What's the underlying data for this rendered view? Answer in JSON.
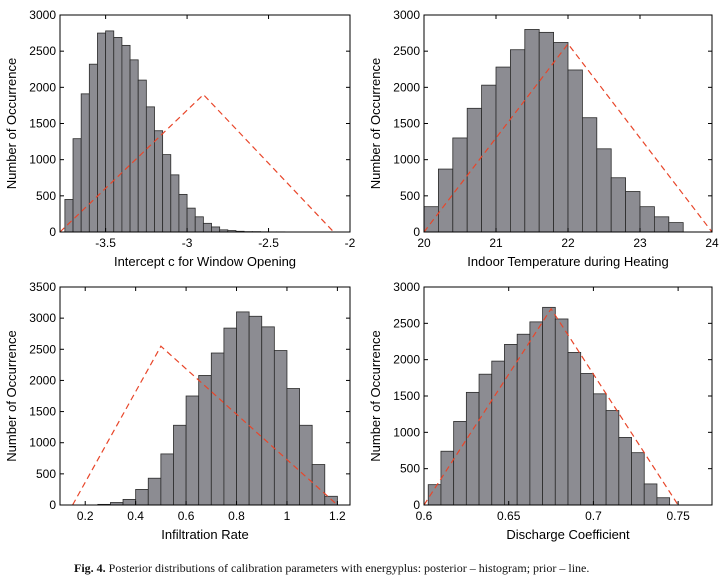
{
  "figure": {
    "caption_label": "Fig. 4.",
    "caption_text": "Posterior distributions of calibration parameters with energyplus: posterior – histogram; prior – line."
  },
  "colors": {
    "bar_fill": "#8c8c92",
    "bar_stroke": "#2a2a2a",
    "prior_line": "#e8462a",
    "axis": "#000000"
  },
  "chart_data": [
    {
      "type": "bar",
      "xlabel": "Intercept c for Window Opening",
      "ylabel": "Number of Occurrence",
      "xlim": [
        -3.78,
        -2.0
      ],
      "ylim": [
        0,
        3000
      ],
      "xticks": [
        -3.5,
        -3,
        -2.5,
        -2
      ],
      "xtick_labels": [
        "-3.5",
        "-3",
        "-2.5",
        "-2"
      ],
      "yticks": [
        0,
        500,
        1000,
        1500,
        2000,
        2500,
        3000
      ],
      "bins": {
        "edges": [
          -3.75,
          -3.7,
          -3.65,
          -3.6,
          -3.55,
          -3.5,
          -3.45,
          -3.4,
          -3.35,
          -3.3,
          -3.25,
          -3.2,
          -3.15,
          -3.1,
          -3.05,
          -3.0,
          -2.95,
          -2.9,
          -2.85,
          -2.8,
          -2.75,
          -2.7,
          -2.65,
          -2.6,
          -2.55,
          -2.5,
          -2.45,
          -2.4,
          -2.35,
          -2.3,
          -2.25,
          -2.2
        ],
        "counts": [
          450,
          1290,
          1910,
          2320,
          2750,
          2780,
          2690,
          2580,
          2380,
          2100,
          1730,
          1400,
          1070,
          790,
          520,
          330,
          210,
          120,
          70,
          30,
          20,
          10,
          5,
          5,
          3,
          2,
          2,
          1,
          1,
          1,
          1
        ]
      },
      "prior_line": {
        "x": [
          -3.78,
          -2.9,
          -2.1
        ],
        "y": [
          0,
          1900,
          0
        ]
      }
    },
    {
      "type": "bar",
      "xlabel": "Indoor Temperature during Heating",
      "ylabel": "Number of Occurrence",
      "xlim": [
        20,
        24
      ],
      "ylim": [
        0,
        3000
      ],
      "xticks": [
        20,
        21,
        22,
        23,
        24
      ],
      "xtick_labels": [
        "20",
        "21",
        "22",
        "23",
        "24"
      ],
      "yticks": [
        0,
        500,
        1000,
        1500,
        2000,
        2500,
        3000
      ],
      "bins": {
        "edges": [
          20.0,
          20.2,
          20.4,
          20.6,
          20.8,
          21.0,
          21.2,
          21.4,
          21.6,
          21.8,
          22.0,
          22.2,
          22.4,
          22.6,
          22.8,
          23.0,
          23.2,
          23.4,
          23.6
        ],
        "counts": [
          350,
          870,
          1300,
          1710,
          2030,
          2280,
          2520,
          2800,
          2760,
          2620,
          2240,
          1580,
          1150,
          750,
          560,
          350,
          210,
          130
        ]
      },
      "prior_line": {
        "x": [
          20.0,
          22.0,
          24.0
        ],
        "y": [
          0,
          2600,
          0
        ]
      }
    },
    {
      "type": "bar",
      "xlabel": "Infiltration Rate",
      "ylabel": "Number of Occurrence",
      "xlim": [
        0.1,
        1.25
      ],
      "ylim": [
        0,
        3500
      ],
      "xticks": [
        0.2,
        0.4,
        0.6,
        0.8,
        1,
        1.2
      ],
      "xtick_labels": [
        "0.2",
        "0.4",
        "0.6",
        "0.8",
        "1",
        "1.2"
      ],
      "yticks": [
        0,
        500,
        1000,
        1500,
        2000,
        2500,
        3000,
        3500
      ],
      "bins": {
        "edges": [
          0.25,
          0.3,
          0.35,
          0.4,
          0.45,
          0.5,
          0.55,
          0.6,
          0.65,
          0.7,
          0.75,
          0.8,
          0.85,
          0.9,
          0.95,
          1.0,
          1.05,
          1.1,
          1.15,
          1.2
        ],
        "counts": [
          10,
          40,
          90,
          250,
          430,
          820,
          1280,
          1750,
          2080,
          2440,
          2840,
          3100,
          3030,
          2860,
          2480,
          1870,
          1280,
          650,
          140
        ]
      },
      "prior_line": {
        "x": [
          0.15,
          0.5,
          1.2
        ],
        "y": [
          0,
          2550,
          0
        ]
      }
    },
    {
      "type": "bar",
      "xlabel": "Discharge Coefficient",
      "ylabel": "Number of Occurrence",
      "xlim": [
        0.6,
        0.77
      ],
      "ylim": [
        0,
        3000
      ],
      "xticks": [
        0.6,
        0.65,
        0.7,
        0.75
      ],
      "xtick_labels": [
        "0.6",
        "0.65",
        "0.7",
        "0.75"
      ],
      "yticks": [
        0,
        500,
        1000,
        1500,
        2000,
        2500,
        3000
      ],
      "bins": {
        "edges": [
          0.6025,
          0.61,
          0.6175,
          0.625,
          0.6325,
          0.64,
          0.6475,
          0.655,
          0.6625,
          0.67,
          0.6775,
          0.685,
          0.6925,
          0.7,
          0.7075,
          0.715,
          0.7225,
          0.73,
          0.7375,
          0.745
        ],
        "counts": [
          280,
          740,
          1150,
          1550,
          1800,
          1980,
          2210,
          2350,
          2520,
          2720,
          2560,
          2100,
          1810,
          1530,
          1300,
          930,
          720,
          290,
          100
        ]
      },
      "prior_line": {
        "x": [
          0.6,
          0.675,
          0.75
        ],
        "y": [
          0,
          2700,
          0
        ]
      }
    }
  ]
}
